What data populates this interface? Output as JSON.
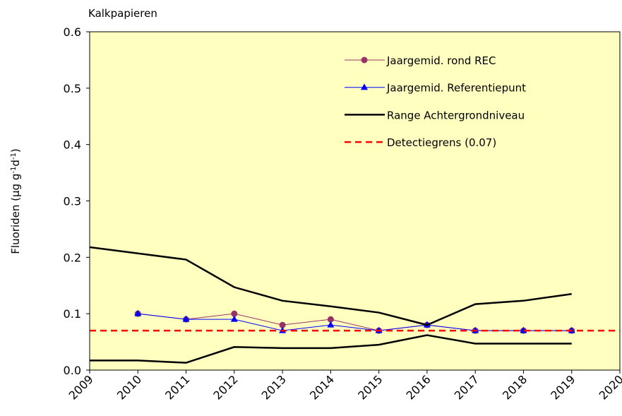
{
  "chart_data": {
    "type": "line",
    "title": "Kalkpapieren",
    "y_label": [
      "Fluoriden  (µg g",
      "-1",
      "d",
      "-1",
      ")"
    ],
    "x": [
      2009,
      2010,
      2011,
      2012,
      2013,
      2014,
      2015,
      2016,
      2017,
      2018,
      2019
    ],
    "xlim": [
      2009,
      2020
    ],
    "xticks": [
      2009,
      2010,
      2011,
      2012,
      2013,
      2014,
      2015,
      2016,
      2017,
      2018,
      2019,
      2020
    ],
    "ylim": [
      0,
      0.6
    ],
    "yticks": [
      {
        "value": 0,
        "label": "0.0"
      },
      0.1,
      0.2,
      0.3,
      0.4,
      0.5,
      0.6
    ],
    "background": "#ffffc0",
    "series": [
      {
        "name": "Jaargemid. rond REC",
        "color": "#993366",
        "marker": "circle",
        "values": [
          null,
          0.1,
          0.09,
          0.1,
          0.08,
          0.09,
          0.07,
          0.08,
          0.07,
          0.07,
          0.07
        ]
      },
      {
        "name": "Jaargemid. Referentiepunt",
        "color": "#0000ff",
        "marker": "triangle",
        "values": [
          null,
          0.1,
          0.09,
          0.09,
          0.07,
          0.08,
          0.07,
          0.08,
          0.07,
          0.07,
          0.07
        ]
      },
      {
        "name": "Range Achtergrondniveau",
        "color": "#000000",
        "values": [
          0.218,
          0.207,
          0.196,
          0.147,
          0.123,
          0.113,
          0.102,
          0.08,
          0.117,
          0.123,
          0.135
        ],
        "low": [
          0.017,
          0.017,
          0.013,
          0.041,
          0.039,
          0.039,
          0.045,
          0.062,
          0.047,
          0.047,
          0.047
        ]
      },
      {
        "name": "Detectiegrens (0.07)",
        "color": "#ff0000",
        "value": 0.07,
        "dashed": true
      }
    ]
  }
}
